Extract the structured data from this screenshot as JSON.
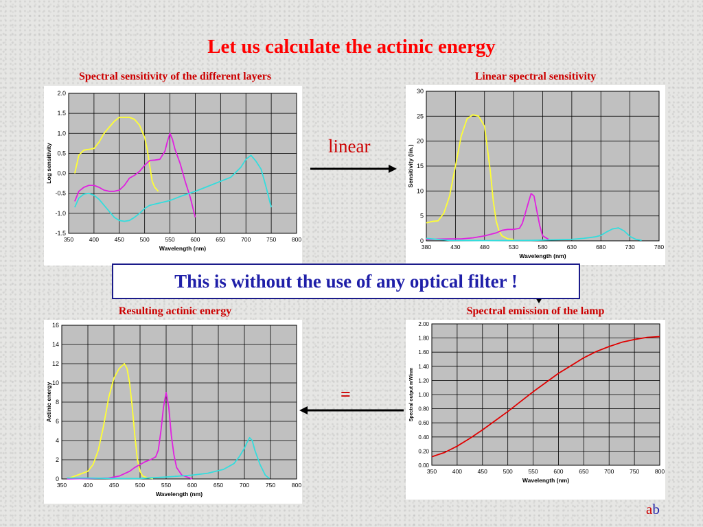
{
  "slide": {
    "title": "Let us calculate the actinic energy",
    "subtitles": {
      "top_left": "Spectral sensitivity of the different layers",
      "top_right": "Linear spectral sensitivity",
      "bottom_left": "Resulting actinic energy",
      "bottom_right": "Spectral emission of the lamp"
    },
    "linear_label": "linear",
    "equals_label": "=",
    "callout": "This is without the use of any optical filter !",
    "logo": {
      "a": "a",
      "b": "b"
    },
    "colors": {
      "title": "#ff0000",
      "subtitle": "#cc0000",
      "callout_text": "#1f1fa8",
      "plot_bg": "#c0c0c0",
      "yellow": "#ffff33",
      "magenta": "#e020e0",
      "cyan": "#33dddd",
      "red": "#e00000"
    }
  },
  "chart_data": [
    {
      "type": "line",
      "ylabel": "Log sensitivity",
      "xlabel": "Wavelength (nm)",
      "xlim": [
        350,
        800
      ],
      "ylim": [
        -1.5,
        2.0
      ],
      "xticks": [
        350,
        400,
        450,
        500,
        550,
        600,
        650,
        700,
        750,
        800
      ],
      "yticks": [
        -1.5,
        -1.0,
        -0.5,
        0.0,
        0.5,
        1.0,
        1.5,
        2.0
      ],
      "ytick_labels": [
        "-1.5",
        "-1.0",
        "-0.5",
        "0.0",
        "0.5",
        "1.0",
        "1.5",
        "2.0"
      ],
      "grid": true,
      "series": [
        {
          "color": "#ffff33",
          "points": [
            [
              362,
              0.0
            ],
            [
              370,
              0.45
            ],
            [
              380,
              0.58
            ],
            [
              390,
              0.6
            ],
            [
              400,
              0.62
            ],
            [
              410,
              0.78
            ],
            [
              420,
              1.0
            ],
            [
              430,
              1.15
            ],
            [
              440,
              1.3
            ],
            [
              450,
              1.4
            ],
            [
              460,
              1.4
            ],
            [
              470,
              1.4
            ],
            [
              480,
              1.35
            ],
            [
              490,
              1.2
            ],
            [
              500,
              0.9
            ],
            [
              505,
              0.6
            ],
            [
              510,
              0.2
            ],
            [
              515,
              -0.2
            ],
            [
              520,
              -0.35
            ],
            [
              527,
              -0.45
            ]
          ]
        },
        {
          "color": "#e020e0",
          "points": [
            [
              362,
              -0.7
            ],
            [
              370,
              -0.45
            ],
            [
              380,
              -0.35
            ],
            [
              390,
              -0.3
            ],
            [
              400,
              -0.3
            ],
            [
              410,
              -0.35
            ],
            [
              420,
              -0.42
            ],
            [
              430,
              -0.45
            ],
            [
              440,
              -0.45
            ],
            [
              450,
              -0.42
            ],
            [
              460,
              -0.3
            ],
            [
              470,
              -0.12
            ],
            [
              480,
              -0.05
            ],
            [
              490,
              0.05
            ],
            [
              500,
              0.2
            ],
            [
              510,
              0.32
            ],
            [
              520,
              0.33
            ],
            [
              530,
              0.35
            ],
            [
              540,
              0.55
            ],
            [
              545,
              0.8
            ],
            [
              550,
              1.0
            ],
            [
              555,
              0.85
            ],
            [
              560,
              0.6
            ],
            [
              570,
              0.25
            ],
            [
              580,
              -0.2
            ],
            [
              590,
              -0.6
            ],
            [
              600,
              -1.1
            ]
          ]
        },
        {
          "color": "#33dddd",
          "points": [
            [
              362,
              -0.85
            ],
            [
              370,
              -0.62
            ],
            [
              380,
              -0.52
            ],
            [
              390,
              -0.5
            ],
            [
              400,
              -0.55
            ],
            [
              410,
              -0.65
            ],
            [
              420,
              -0.8
            ],
            [
              430,
              -0.95
            ],
            [
              440,
              -1.1
            ],
            [
              450,
              -1.18
            ],
            [
              460,
              -1.2
            ],
            [
              470,
              -1.18
            ],
            [
              480,
              -1.1
            ],
            [
              490,
              -1.0
            ],
            [
              500,
              -0.88
            ],
            [
              510,
              -0.8
            ],
            [
              530,
              -0.74
            ],
            [
              550,
              -0.68
            ],
            [
              570,
              -0.58
            ],
            [
              600,
              -0.45
            ],
            [
              620,
              -0.35
            ],
            [
              650,
              -0.2
            ],
            [
              670,
              -0.1
            ],
            [
              690,
              0.15
            ],
            [
              700,
              0.35
            ],
            [
              710,
              0.45
            ],
            [
              720,
              0.3
            ],
            [
              730,
              0.1
            ],
            [
              740,
              -0.35
            ],
            [
              750,
              -0.85
            ]
          ]
        }
      ]
    },
    {
      "type": "line",
      "ylabel": "Sensitivity (lin.)",
      "xlabel": "Wavelength (nm)",
      "xlim": [
        380,
        780
      ],
      "ylim": [
        0,
        30
      ],
      "xticks": [
        380,
        430,
        480,
        530,
        580,
        630,
        680,
        730,
        780
      ],
      "yticks": [
        0,
        5,
        10,
        15,
        20,
        25,
        30
      ],
      "ytick_labels": [
        "0",
        "5",
        "10",
        "15",
        "20",
        "25",
        "30"
      ],
      "grid": true,
      "series": [
        {
          "color": "#ffff33",
          "points": [
            [
              380,
              3.6
            ],
            [
              390,
              3.9
            ],
            [
              400,
              4.0
            ],
            [
              410,
              5.5
            ],
            [
              420,
              9.0
            ],
            [
              430,
              15.0
            ],
            [
              440,
              21.0
            ],
            [
              450,
              24.5
            ],
            [
              460,
              25.3
            ],
            [
              470,
              25.0
            ],
            [
              480,
              23.0
            ],
            [
              490,
              14.0
            ],
            [
              495,
              8.0
            ],
            [
              500,
              4.0
            ],
            [
              505,
              2.0
            ],
            [
              510,
              1.0
            ],
            [
              520,
              0.4
            ],
            [
              530,
              0.3
            ]
          ]
        },
        {
          "color": "#e020e0",
          "points": [
            [
              380,
              0.3
            ],
            [
              420,
              0.4
            ],
            [
              440,
              0.4
            ],
            [
              460,
              0.6
            ],
            [
              480,
              1.0
            ],
            [
              500,
              1.6
            ],
            [
              510,
              2.1
            ],
            [
              520,
              2.3
            ],
            [
              530,
              2.3
            ],
            [
              540,
              2.5
            ],
            [
              545,
              3.5
            ],
            [
              550,
              5.5
            ],
            [
              555,
              7.5
            ],
            [
              560,
              9.5
            ],
            [
              565,
              9.0
            ],
            [
              570,
              6.0
            ],
            [
              575,
              3.0
            ],
            [
              580,
              1.0
            ],
            [
              590,
              0.3
            ]
          ]
        },
        {
          "color": "#33dddd",
          "points": [
            [
              380,
              0.5
            ],
            [
              420,
              0.1
            ],
            [
              480,
              0.05
            ],
            [
              560,
              0.1
            ],
            [
              600,
              0.2
            ],
            [
              630,
              0.3
            ],
            [
              650,
              0.5
            ],
            [
              670,
              0.8
            ],
            [
              680,
              1.1
            ],
            [
              690,
              1.8
            ],
            [
              700,
              2.4
            ],
            [
              710,
              2.6
            ],
            [
              720,
              2.0
            ],
            [
              730,
              0.9
            ],
            [
              740,
              0.3
            ],
            [
              750,
              0.1
            ]
          ]
        }
      ]
    },
    {
      "type": "line",
      "ylabel": "Actinic energy",
      "xlabel": "Wavelength (nm)",
      "xlim": [
        350,
        800
      ],
      "ylim": [
        0,
        16
      ],
      "xticks": [
        350,
        400,
        450,
        500,
        550,
        600,
        650,
        700,
        750,
        800
      ],
      "yticks": [
        0,
        2,
        4,
        6,
        8,
        10,
        12,
        14,
        16
      ],
      "ytick_labels": [
        "0",
        "2",
        "4",
        "6",
        "8",
        "10",
        "12",
        "14",
        "16"
      ],
      "grid": true,
      "series": [
        {
          "color": "#ffff33",
          "points": [
            [
              360,
              0.05
            ],
            [
              370,
              0.2
            ],
            [
              380,
              0.4
            ],
            [
              390,
              0.6
            ],
            [
              400,
              0.8
            ],
            [
              410,
              1.5
            ],
            [
              420,
              3.0
            ],
            [
              430,
              5.5
            ],
            [
              440,
              8.5
            ],
            [
              450,
              10.5
            ],
            [
              460,
              11.5
            ],
            [
              470,
              12.0
            ],
            [
              475,
              11.5
            ],
            [
              480,
              10.0
            ],
            [
              485,
              7.5
            ],
            [
              490,
              4.5
            ],
            [
              495,
              2.0
            ],
            [
              500,
              0.8
            ],
            [
              505,
              0.3
            ],
            [
              515,
              0.1
            ],
            [
              525,
              0.05
            ]
          ]
        },
        {
          "color": "#e020e0",
          "points": [
            [
              360,
              0.0
            ],
            [
              400,
              0.05
            ],
            [
              440,
              0.1
            ],
            [
              460,
              0.3
            ],
            [
              480,
              0.8
            ],
            [
              490,
              1.2
            ],
            [
              500,
              1.5
            ],
            [
              510,
              1.8
            ],
            [
              520,
              2.0
            ],
            [
              530,
              2.3
            ],
            [
              535,
              3.0
            ],
            [
              540,
              5.0
            ],
            [
              545,
              7.5
            ],
            [
              550,
              9.0
            ],
            [
              555,
              7.5
            ],
            [
              560,
              4.5
            ],
            [
              565,
              2.5
            ],
            [
              570,
              1.2
            ],
            [
              580,
              0.4
            ],
            [
              600,
              0.0
            ]
          ]
        },
        {
          "color": "#33dddd",
          "points": [
            [
              360,
              0.1
            ],
            [
              400,
              0.1
            ],
            [
              450,
              0.05
            ],
            [
              500,
              0.05
            ],
            [
              550,
              0.2
            ],
            [
              600,
              0.4
            ],
            [
              630,
              0.6
            ],
            [
              660,
              1.0
            ],
            [
              680,
              1.6
            ],
            [
              690,
              2.3
            ],
            [
              700,
              3.2
            ],
            [
              705,
              3.8
            ],
            [
              710,
              4.3
            ],
            [
              715,
              4.0
            ],
            [
              720,
              3.0
            ],
            [
              730,
              1.5
            ],
            [
              740,
              0.4
            ],
            [
              748,
              0.05
            ]
          ]
        }
      ]
    },
    {
      "type": "line",
      "ylabel": "Spectral output mW/nm",
      "xlabel": "Wavelength (nm)",
      "xlim": [
        350,
        800
      ],
      "ylim": [
        0,
        2.0
      ],
      "xticks": [
        350,
        400,
        450,
        500,
        550,
        600,
        650,
        700,
        750,
        800
      ],
      "yticks": [
        0,
        0.2,
        0.4,
        0.6,
        0.8,
        1.0,
        1.2,
        1.4,
        1.6,
        1.8,
        2.0
      ],
      "ytick_labels": [
        "0.00",
        "0.20",
        "0.40",
        "0.60",
        "0.80",
        "1.00",
        "1.20",
        "1.40",
        "1.60",
        "1.80",
        "2.00"
      ],
      "grid": true,
      "series": [
        {
          "color": "#e00000",
          "points": [
            [
              350,
              0.12
            ],
            [
              375,
              0.18
            ],
            [
              400,
              0.27
            ],
            [
              425,
              0.38
            ],
            [
              450,
              0.5
            ],
            [
              475,
              0.63
            ],
            [
              500,
              0.76
            ],
            [
              525,
              0.9
            ],
            [
              550,
              1.04
            ],
            [
              575,
              1.17
            ],
            [
              600,
              1.3
            ],
            [
              625,
              1.41
            ],
            [
              650,
              1.52
            ],
            [
              675,
              1.61
            ],
            [
              700,
              1.68
            ],
            [
              725,
              1.74
            ],
            [
              750,
              1.78
            ],
            [
              775,
              1.81
            ],
            [
              800,
              1.82
            ]
          ]
        }
      ]
    }
  ]
}
